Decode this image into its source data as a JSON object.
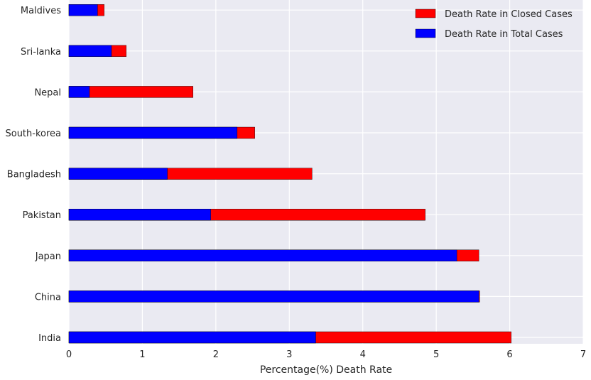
{
  "chart_data": {
    "type": "bar",
    "orientation": "horizontal",
    "stacked": false,
    "categories": [
      "India",
      "China",
      "Japan",
      "Pakistan",
      "Bangladesh",
      "South-korea",
      "Nepal",
      "Sri-lanka",
      "Maldives"
    ],
    "series": [
      {
        "name": "Death Rate in Closed Cases",
        "color": "#ff0000",
        "values": [
          6.02,
          5.59,
          5.58,
          4.85,
          3.31,
          2.53,
          1.69,
          0.78,
          0.48
        ]
      },
      {
        "name": "Death Rate in Total Cases",
        "color": "#0000ff",
        "values": [
          3.36,
          5.58,
          5.28,
          1.93,
          1.34,
          2.29,
          0.28,
          0.58,
          0.39
        ]
      }
    ],
    "xlabel": "Percentage(%) Death Rate",
    "ylabel": "",
    "title": "",
    "xlim": [
      0,
      7
    ],
    "xticks": [
      "0",
      "1",
      "2",
      "3",
      "4",
      "5",
      "6",
      "7"
    ],
    "grid": true,
    "legend_position": "top-right",
    "background": "#eaeaf2"
  }
}
